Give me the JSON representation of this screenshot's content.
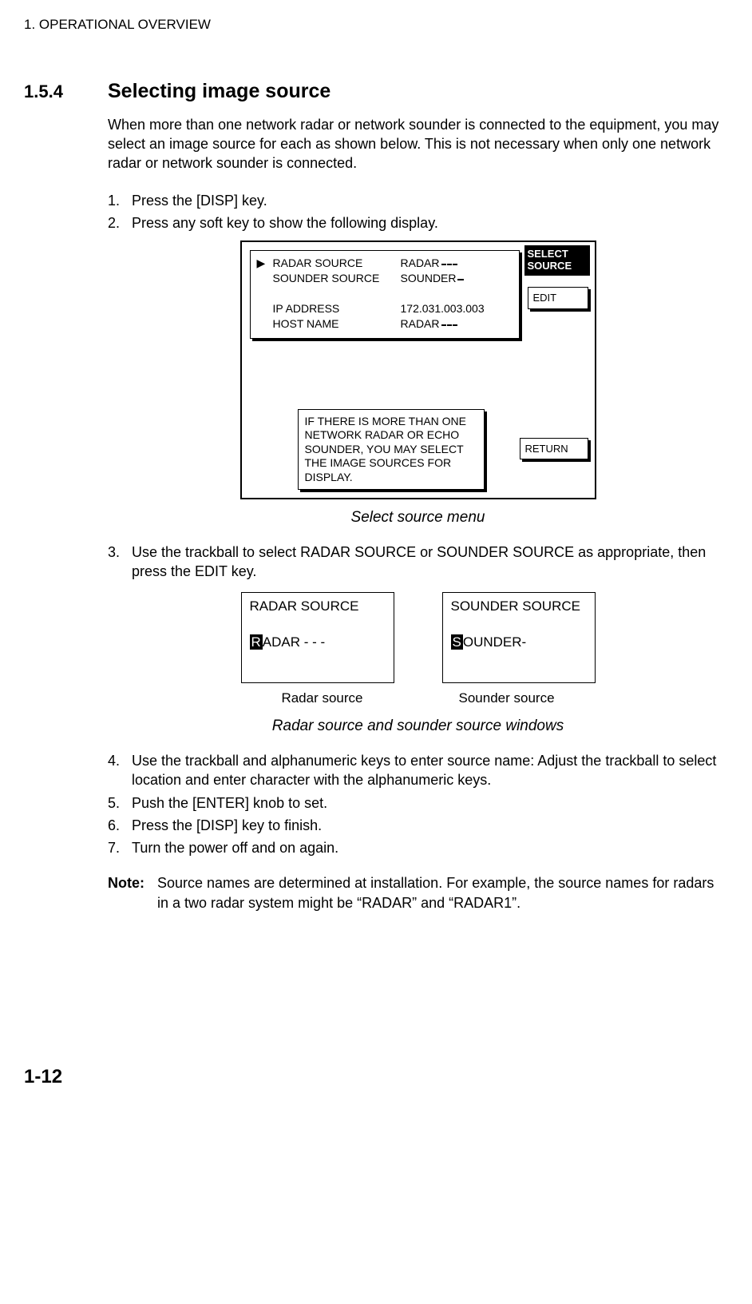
{
  "header": "1. OPERATIONAL OVERVIEW",
  "section_num": "1.5.4",
  "section_title": "Selecting image source",
  "intro": "When more than one network radar or network sounder is connected to the equipment, you may select an image source for each as shown below. This is not necessary when only one network radar or network sounder is connected.",
  "steps_a": [
    "Press the [DISP] key.",
    "Press any soft key to show the following display."
  ],
  "fig1": {
    "rows": [
      {
        "marker": "▶",
        "label": "RADAR  SOURCE",
        "value": "RADAR",
        "dashed": true
      },
      {
        "marker": "",
        "label": "SOUNDER SOURCE",
        "value": "SOUNDER",
        "short": true
      },
      {
        "marker": "",
        "label": "",
        "value": ""
      },
      {
        "marker": "",
        "label": "IP ADDRESS",
        "value": "172.031.003.003"
      },
      {
        "marker": "",
        "label": "HOST NAME",
        "value": "RADAR",
        "dashed": true
      }
    ],
    "select_source_l1": "SELECT",
    "select_source_l2": "SOURCE",
    "edit": "EDIT",
    "return": "RETURN",
    "help": "IF THERE IS MORE THAN ONE NETWORK RADAR OR ECHO SOUNDER, YOU MAY SELECT THE IMAGE SOURCES FOR DISPLAY."
  },
  "caption1": "Select source menu",
  "step3": "Use the trackball to select RADAR SOURCE or SOUNDER SOURCE as appropriate, then press the EDIT key.",
  "fig2": {
    "left": {
      "title": "RADAR SOURCE",
      "first": "R",
      "rest": "ADAR - - -"
    },
    "right": {
      "title": "SOUNDER SOURCE",
      "first": "S",
      "rest": "OUNDER-"
    },
    "label_left": "Radar source",
    "label_right": "Sounder source"
  },
  "caption2": "Radar source and sounder source windows",
  "steps_b": [
    "Use the trackball and alphanumeric keys to enter source name: Adjust the trackball to select location and enter character with the alphanumeric keys.",
    "Push the [ENTER] knob to set.",
    "Press the [DISP] key to finish.",
    "Turn the power off and on again."
  ],
  "note_label": "Note:",
  "note_text": "Source names are determined at installation. For example, the source names for radars in a two radar system might be “RADAR” and “RADAR1”.",
  "page_num": "1-12"
}
